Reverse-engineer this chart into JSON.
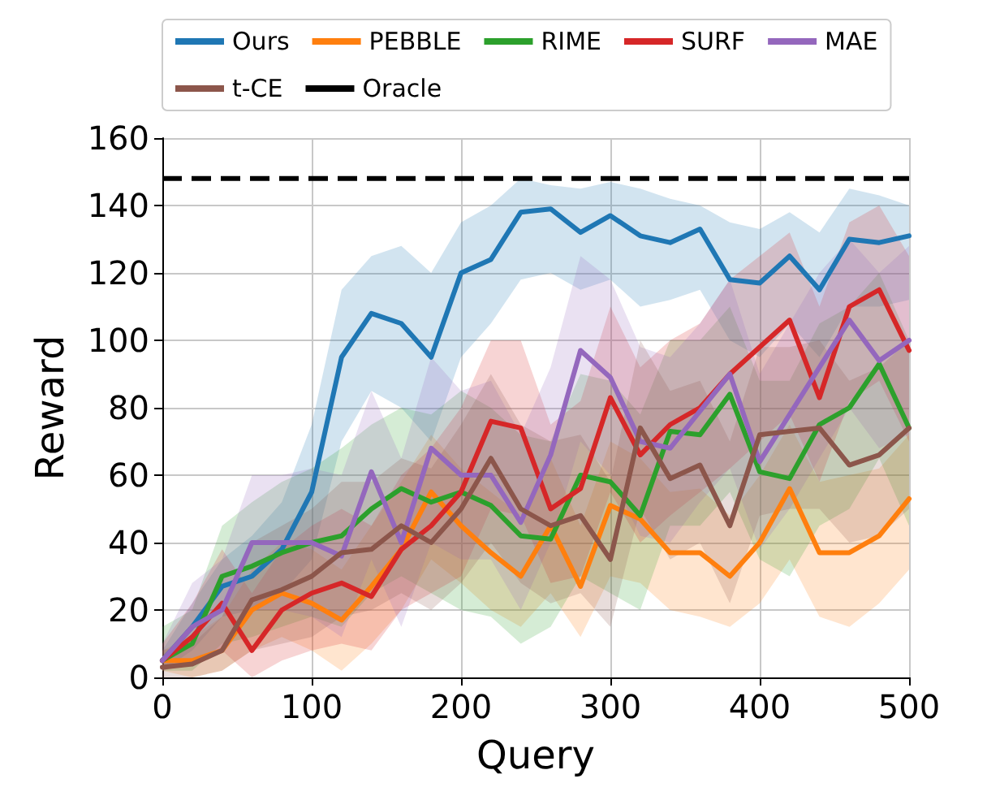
{
  "chart_data": {
    "type": "line",
    "xlabel": "Query",
    "ylabel": "Reward",
    "x": [
      0,
      20,
      40,
      60,
      80,
      100,
      120,
      140,
      160,
      180,
      200,
      220,
      240,
      260,
      280,
      300,
      320,
      340,
      360,
      380,
      400,
      420,
      440,
      460,
      480,
      500
    ],
    "xlim": [
      0,
      500
    ],
    "xticks": [
      0,
      100,
      200,
      300,
      400,
      500
    ],
    "ylim": [
      0,
      160
    ],
    "yticks": [
      0,
      20,
      40,
      60,
      80,
      100,
      120,
      140,
      160
    ],
    "grid": true,
    "legend": "top",
    "marker": "none",
    "line_style": "solid",
    "series": [
      {
        "name": "Ours",
        "color": "#1f77b4",
        "values": [
          5,
          15,
          27,
          30,
          38,
          55,
          95,
          108,
          105,
          95,
          120,
          124,
          138,
          139,
          132,
          137,
          131,
          129,
          133,
          118,
          117,
          125,
          115,
          130,
          129,
          131
        ],
        "lower": [
          2,
          8,
          18,
          20,
          25,
          35,
          70,
          85,
          80,
          70,
          95,
          105,
          118,
          120,
          115,
          118,
          110,
          112,
          115,
          100,
          95,
          105,
          95,
          110,
          110,
          112
        ],
        "upper": [
          8,
          22,
          35,
          42,
          52,
          75,
          115,
          125,
          128,
          120,
          135,
          140,
          148,
          146,
          145,
          147,
          145,
          142,
          140,
          135,
          133,
          138,
          132,
          145,
          143,
          140
        ]
      },
      {
        "name": "PEBBLE",
        "color": "#ff7f0e",
        "values": [
          5,
          5,
          8,
          20,
          25,
          22,
          17,
          27,
          38,
          55,
          45,
          37,
          30,
          45,
          27,
          51,
          47,
          37,
          37,
          30,
          40,
          56,
          37,
          37,
          42,
          53
        ],
        "lower": [
          2,
          0,
          2,
          8,
          12,
          8,
          2,
          10,
          20,
          35,
          28,
          20,
          15,
          25,
          12,
          30,
          28,
          20,
          18,
          15,
          22,
          35,
          18,
          15,
          22,
          32
        ],
        "upper": [
          8,
          12,
          18,
          32,
          40,
          38,
          32,
          45,
          58,
          72,
          62,
          55,
          48,
          65,
          45,
          70,
          65,
          55,
          56,
          48,
          60,
          75,
          58,
          60,
          62,
          72
        ]
      },
      {
        "name": "RIME",
        "color": "#2ca02c",
        "values": [
          5,
          10,
          30,
          33,
          37,
          40,
          42,
          50,
          56,
          52,
          55,
          51,
          42,
          41,
          60,
          58,
          48,
          73,
          72,
          84,
          61,
          59,
          75,
          80,
          93,
          74
        ],
        "lower": [
          2,
          2,
          10,
          12,
          15,
          18,
          15,
          25,
          30,
          25,
          20,
          18,
          10,
          15,
          30,
          25,
          20,
          45,
          45,
          55,
          35,
          30,
          45,
          50,
          65,
          45
        ],
        "upper": [
          15,
          20,
          45,
          52,
          58,
          62,
          68,
          75,
          80,
          78,
          85,
          80,
          72,
          70,
          90,
          88,
          78,
          100,
          100,
          110,
          88,
          88,
          105,
          110,
          120,
          100
        ]
      },
      {
        "name": "SURF",
        "color": "#d62728",
        "values": [
          5,
          12,
          22,
          8,
          20,
          25,
          28,
          24,
          38,
          45,
          55,
          76,
          74,
          50,
          56,
          83,
          66,
          75,
          80,
          90,
          98,
          106,
          83,
          110,
          115,
          97
        ],
        "lower": [
          2,
          4,
          8,
          0,
          5,
          8,
          10,
          8,
          20,
          25,
          30,
          50,
          48,
          28,
          30,
          55,
          40,
          48,
          55,
          62,
          70,
          78,
          58,
          82,
          88,
          70
        ],
        "upper": [
          10,
          22,
          38,
          25,
          38,
          45,
          50,
          45,
          60,
          68,
          80,
          100,
          100,
          75,
          82,
          110,
          92,
          100,
          105,
          118,
          125,
          132,
          110,
          135,
          140,
          125
        ]
      },
      {
        "name": "MAE",
        "color": "#9467bd",
        "values": [
          5,
          15,
          20,
          40,
          40,
          40,
          36,
          61,
          40,
          68,
          60,
          60,
          46,
          66,
          97,
          89,
          70,
          68,
          79,
          90,
          64,
          78,
          92,
          106,
          94,
          100
        ],
        "lower": [
          2,
          5,
          8,
          20,
          20,
          18,
          12,
          35,
          15,
          40,
          35,
          35,
          20,
          40,
          70,
          60,
          42,
          40,
          52,
          62,
          38,
          50,
          65,
          80,
          68,
          72
        ],
        "upper": [
          10,
          28,
          35,
          60,
          60,
          62,
          60,
          85,
          65,
          95,
          85,
          88,
          72,
          92,
          125,
          118,
          98,
          95,
          105,
          118,
          90,
          105,
          120,
          130,
          120,
          128
        ]
      },
      {
        "name": "t-CE",
        "color": "#8c564b",
        "values": [
          3,
          4,
          8,
          23,
          26,
          30,
          37,
          38,
          45,
          40,
          50,
          65,
          50,
          45,
          48,
          35,
          74,
          59,
          63,
          45,
          72,
          73,
          74,
          63,
          66,
          74
        ],
        "lower": [
          0,
          0,
          2,
          8,
          10,
          12,
          18,
          20,
          25,
          20,
          28,
          40,
          28,
          22,
          25,
          15,
          50,
          35,
          40,
          22,
          48,
          50,
          50,
          40,
          42,
          50
        ],
        "upper": [
          8,
          10,
          18,
          40,
          45,
          50,
          58,
          58,
          65,
          62,
          75,
          90,
          75,
          70,
          72,
          58,
          100,
          85,
          88,
          70,
          98,
          98,
          100,
          88,
          92,
          100
        ]
      }
    ],
    "ref_lines": [
      {
        "axis": "y",
        "value": 148,
        "label": "Oracle",
        "color": "#000000",
        "line_style": "dashed"
      }
    ]
  }
}
